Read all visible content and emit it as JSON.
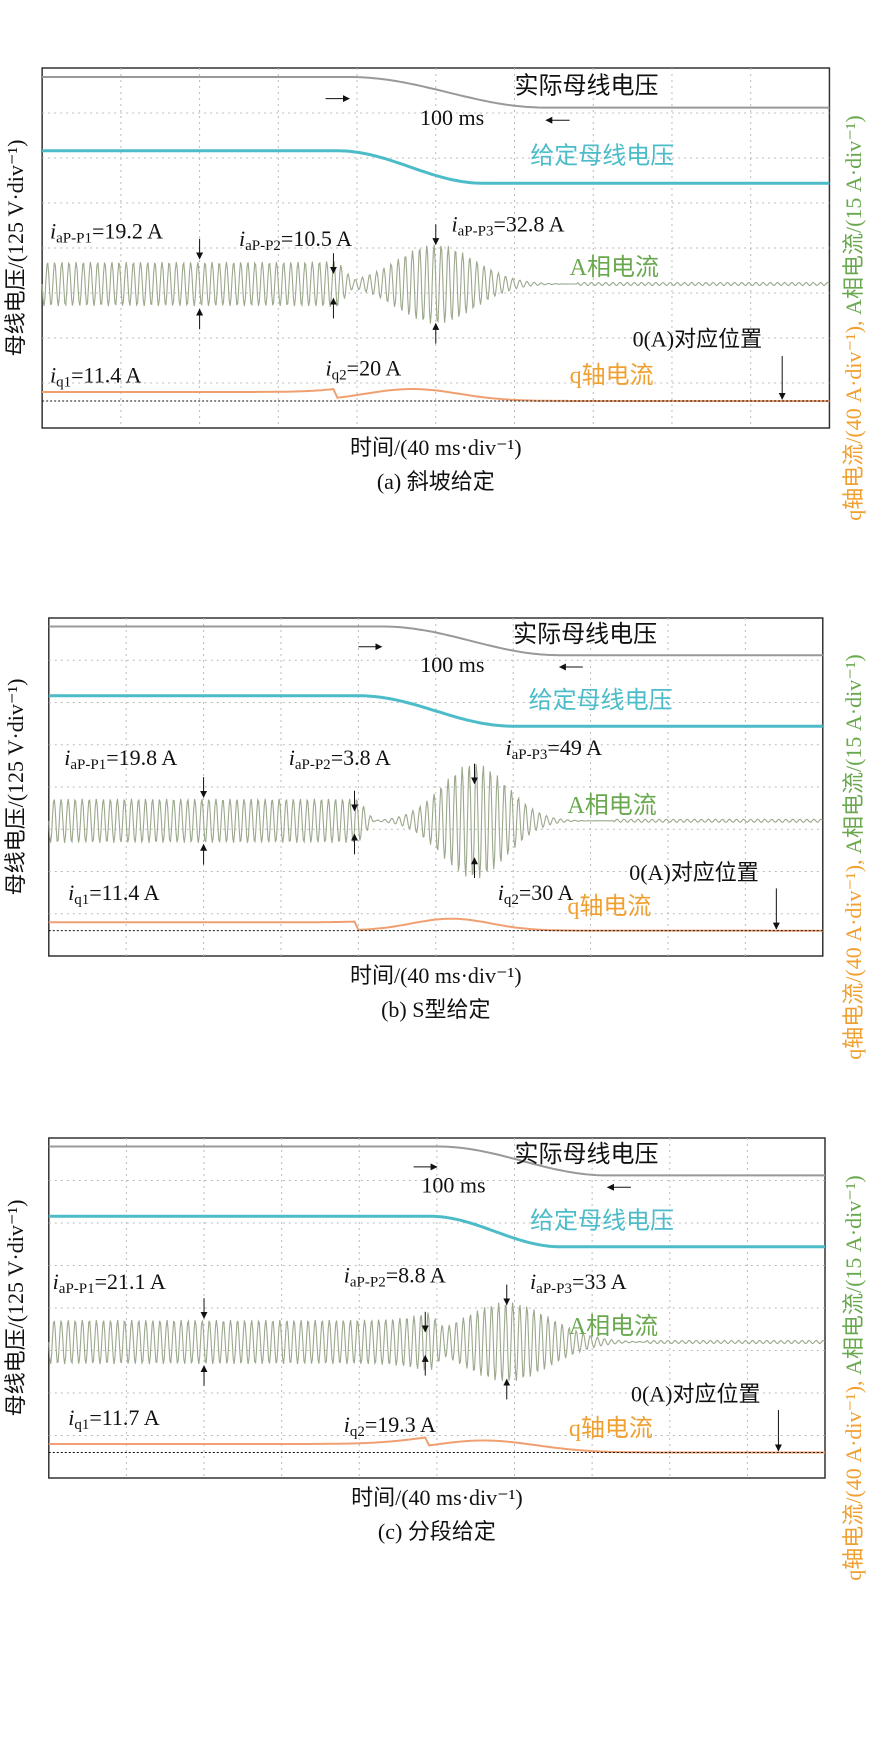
{
  "panels": [
    {
      "caption": "(a) 斜坡给定",
      "y_axis_label": "母线电压/(125 V·div⁻¹)",
      "x_axis_label": "时间/(40 ms·div⁻¹)",
      "right_axis_label": {
        "q_part": "q轴电流/(40 A·div⁻¹), ",
        "a_part": "A相电流/(15 A·div⁻¹)"
      },
      "traces": {
        "actual_voltage": "实际母线电压",
        "reference_voltage": "给定母线电压",
        "phase_a_current": "A相电流",
        "q_current": "q轴电流"
      },
      "interval": "100 ms",
      "zero_label": "0(A)对应位置",
      "annotations": [
        {
          "symbol": "i",
          "subscript": "aP-P1",
          "text": "=19.2 A"
        },
        {
          "symbol": "i",
          "subscript": "aP-P2",
          "text": "=10.5 A"
        },
        {
          "symbol": "i",
          "subscript": "aP-P3",
          "text": "=32.8 A"
        },
        {
          "symbol": "i",
          "subscript": "q1",
          "text": "=11.4 A"
        },
        {
          "symbol": "i",
          "subscript": "q2",
          "text": "=20 A"
        }
      ]
    },
    {
      "caption": "(b) S型给定",
      "y_axis_label": "母线电压/(125 V·div⁻¹)",
      "x_axis_label": "时间/(40 ms·div⁻¹)",
      "right_axis_label": {
        "q_part": "q轴电流/(40 A·div⁻¹), ",
        "a_part": "A相电流/(15 A·div⁻¹)"
      },
      "traces": {
        "actual_voltage": "实际母线电压",
        "reference_voltage": "给定母线电压",
        "phase_a_current": "A相电流",
        "q_current": "q轴电流"
      },
      "interval": "100 ms",
      "zero_label": "0(A)对应位置",
      "annotations": [
        {
          "symbol": "i",
          "subscript": "aP-P1",
          "text": "=19.8 A"
        },
        {
          "symbol": "i",
          "subscript": "aP-P2",
          "text": "=3.8 A"
        },
        {
          "symbol": "i",
          "subscript": "aP-P3",
          "text": "=49 A"
        },
        {
          "symbol": "i",
          "subscript": "q1",
          "text": "=11.4 A"
        },
        {
          "symbol": "i",
          "subscript": "q2",
          "text": "=30 A"
        }
      ]
    },
    {
      "caption": "(c) 分段给定",
      "y_axis_label": "母线电压/(125 V·div⁻¹)",
      "x_axis_label": "时间/(40 ms·div⁻¹)",
      "right_axis_label": {
        "q_part": "q轴电流/(40 A·div⁻¹), ",
        "a_part": "A相电流/(15 A·div⁻¹)"
      },
      "traces": {
        "actual_voltage": "实际母线电压",
        "reference_voltage": "给定母线电压",
        "phase_a_current": "A相电流",
        "q_current": "q轴电流"
      },
      "interval": "100 ms",
      "zero_label": "0(A)对应位置",
      "annotations": [
        {
          "symbol": "i",
          "subscript": "aP-P1",
          "text": "=21.1 A"
        },
        {
          "symbol": "i",
          "subscript": "aP-P2",
          "text": "=8.8 A"
        },
        {
          "symbol": "i",
          "subscript": "aP-P3",
          "text": "=33 A"
        },
        {
          "symbol": "i",
          "subscript": "q1",
          "text": "=11.7 A"
        },
        {
          "symbol": "i",
          "subscript": "q2",
          "text": "=19.3 A"
        }
      ]
    }
  ]
}
